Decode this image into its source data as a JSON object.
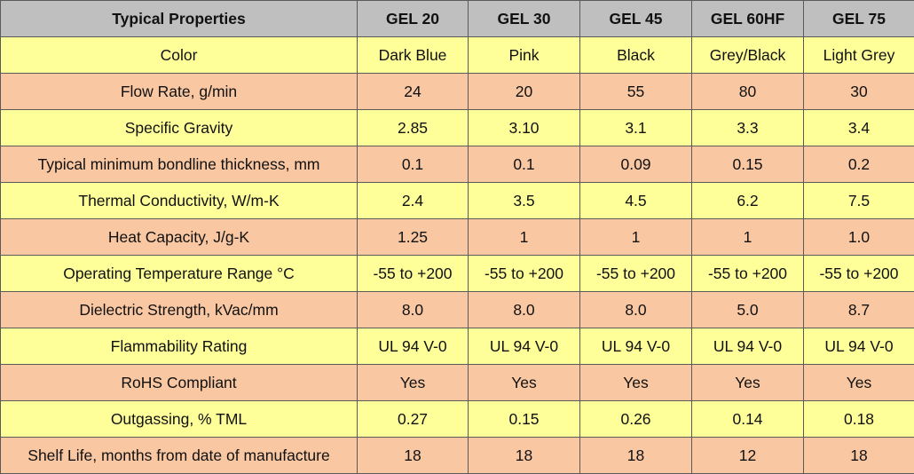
{
  "table": {
    "header": [
      "Typical Properties",
      "GEL 20",
      "GEL 30",
      "GEL 45",
      "GEL 60HF",
      "GEL 75"
    ],
    "rows": [
      [
        "Color",
        "Dark Blue",
        "Pink",
        "Black",
        "Grey/Black",
        "Light Grey"
      ],
      [
        "Flow Rate, g/min",
        "24",
        "20",
        "55",
        "80",
        "30"
      ],
      [
        "Specific Gravity",
        "2.85",
        "3.10",
        "3.1",
        "3.3",
        "3.4"
      ],
      [
        "Typical minimum bondline thickness, mm",
        "0.1",
        "0.1",
        "0.09",
        "0.15",
        "0.2"
      ],
      [
        "Thermal Conductivity, W/m-K",
        "2.4",
        "3.5",
        "4.5",
        "6.2",
        "7.5"
      ],
      [
        "Heat Capacity, J/g-K",
        "1.25",
        "1",
        "1",
        "1",
        "1.0"
      ],
      [
        "Operating Temperature Range °C",
        "-55 to +200",
        "-55 to +200",
        "-55 to +200",
        "-55 to +200",
        "-55 to +200"
      ],
      [
        "Dielectric Strength, kVac/mm",
        "8.0",
        "8.0",
        "8.0",
        "5.0",
        "8.7"
      ],
      [
        "Flammability Rating",
        "UL 94 V-0",
        "UL 94 V-0",
        "UL 94 V-0",
        "UL 94 V-0",
        "UL 94 V-0"
      ],
      [
        "RoHS Compliant",
        "Yes",
        "Yes",
        "Yes",
        "Yes",
        "Yes"
      ],
      [
        "Outgassing, % TML",
        "0.27",
        "0.15",
        "0.26",
        "0.14",
        "0.18"
      ],
      [
        "Shelf Life, months from date of manufacture",
        "18",
        "18",
        "18",
        "12",
        "18"
      ]
    ]
  }
}
